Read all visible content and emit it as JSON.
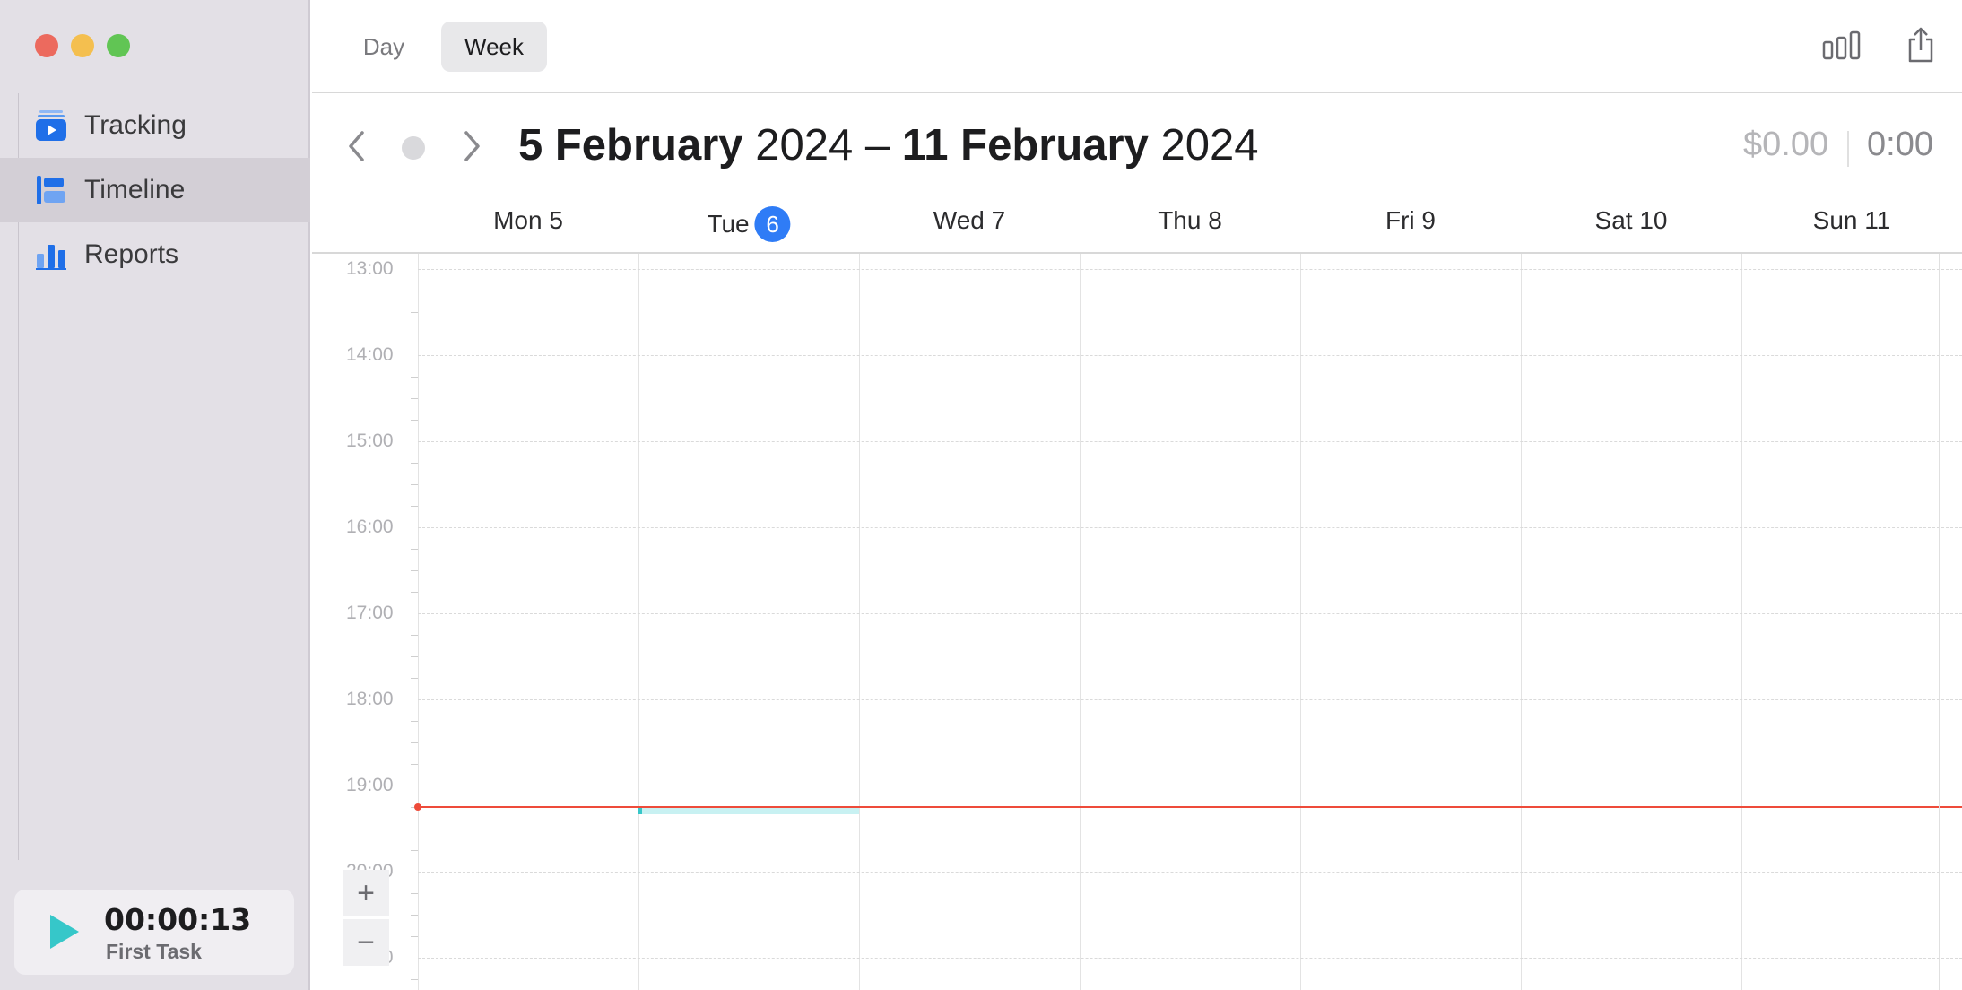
{
  "window": {
    "traffic_lights": {
      "close": "#ec6a5e",
      "minimize": "#f4bf4f",
      "zoom": "#61c554"
    }
  },
  "sidebar": {
    "items": [
      {
        "label": "Tracking",
        "icon": "tracking-icon",
        "selected": false
      },
      {
        "label": "Timeline",
        "icon": "timeline-icon",
        "selected": true
      },
      {
        "label": "Reports",
        "icon": "reports-icon",
        "selected": false
      }
    ],
    "timer": {
      "elapsed": "00:00:13",
      "task": "First Task",
      "icon": "play-icon"
    }
  },
  "toolbar": {
    "segments": [
      {
        "label": "Day",
        "selected": false
      },
      {
        "label": "Week",
        "selected": true
      }
    ],
    "buttons": [
      {
        "icon": "chart-bars-icon"
      },
      {
        "icon": "share-icon"
      }
    ]
  },
  "header": {
    "prev_icon": "chevron-left-icon",
    "next_icon": "chevron-right-icon",
    "range_start_day_month": "5 February",
    "range_start_year": "2024",
    "range_separator": "–",
    "range_end_day_month": "11 February",
    "range_end_year": "2024",
    "amount": "$0.00",
    "duration": "0:00"
  },
  "week": {
    "days": [
      {
        "label": "Mon 5"
      },
      {
        "label": "Tue",
        "badge": "6",
        "today": true
      },
      {
        "label": "Wed 7"
      },
      {
        "label": "Thu 8"
      },
      {
        "label": "Fri 9"
      },
      {
        "label": "Sat 10"
      },
      {
        "label": "Sun 11"
      }
    ],
    "hours": [
      "13:00",
      "14:00",
      "15:00",
      "16:00",
      "17:00",
      "18:00",
      "19:00",
      "20:00",
      "21:00"
    ],
    "current_time_hour": 19.25,
    "entries": [
      {
        "day_index": 1,
        "start_hour": 19.25,
        "end_hour": 19.33,
        "color": "#36c7c9"
      }
    ]
  },
  "zoom": {
    "in_label": "+",
    "out_label": "−"
  },
  "colors": {
    "accent": "#2f7cf6",
    "now_line": "#ee4b3a",
    "entry": "#36c7c9"
  }
}
